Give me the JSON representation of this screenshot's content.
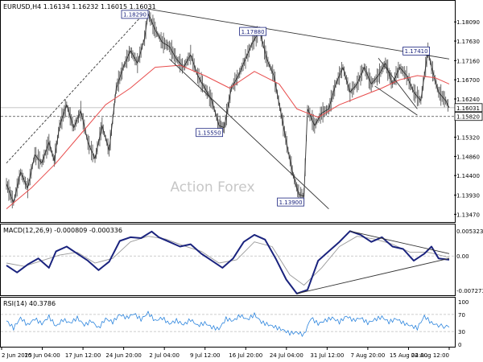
{
  "chart_data": [
    {
      "type": "line",
      "panel": "price",
      "title": "EURUSD,H4  1.16134 1.16232 1.16015 1.16031",
      "ylim": [
        1.134,
        1.185
      ],
      "y_ticks": [
        1.1809,
        1.1763,
        1.1716,
        1.167,
        1.1624,
        1.1532,
        1.1486,
        1.144,
        1.1393,
        1.1347
      ],
      "y_tick_labels": [
        "1.18090",
        "1.17630",
        "1.17160",
        "1.16700",
        "1.16240",
        "1.15320",
        "1.14860",
        "1.14400",
        "1.13930",
        "1.13470"
      ],
      "current_price": 1.16031,
      "current_price_label": "1.16031",
      "support_level": 1.1582,
      "support_label": "1.15820",
      "watermark": "Action Forex",
      "x_ticks": [
        "2 Jun 2025",
        "10 Jun 04:00",
        "17 Jun 12:00",
        "24 Jun 20:00",
        "2 Jul 04:00",
        "9 Jul 12:00",
        "16 Jul 20:00",
        "24 Jul 04:00",
        "31 Jul 12:00",
        "7 Aug 20:00",
        "15 Aug 04:00",
        "22 Aug 12:00"
      ],
      "series": [
        {
          "kind": "price",
          "color": "#555555",
          "points": [
            [
              0,
              1.142
            ],
            [
              4,
              1.1375
            ],
            [
              8,
              1.1448
            ],
            [
              12,
              1.141
            ],
            [
              16,
              1.149
            ],
            [
              20,
              1.147
            ],
            [
              24,
              1.152
            ],
            [
              27,
              1.1475
            ],
            [
              30,
              1.156
            ],
            [
              34,
              1.161
            ],
            [
              38,
              1.1555
            ],
            [
              42,
              1.1595
            ],
            [
              46,
              1.152
            ],
            [
              50,
              1.148
            ],
            [
              54,
              1.156
            ],
            [
              58,
              1.15
            ],
            [
              62,
              1.165
            ],
            [
              66,
              1.17
            ],
            [
              70,
              1.174
            ],
            [
              74,
              1.171
            ],
            [
              78,
              1.177
            ],
            [
              80,
              1.1829
            ],
            [
              84,
              1.179
            ],
            [
              88,
              1.176
            ],
            [
              92,
              1.175
            ],
            [
              96,
              1.172
            ],
            [
              100,
              1.17
            ],
            [
              104,
              1.173
            ],
            [
              108,
              1.168
            ],
            [
              112,
              1.165
            ],
            [
              116,
              1.162
            ],
            [
              120,
              1.156
            ],
            [
              123,
              1.1555
            ],
            [
              127,
              1.165
            ],
            [
              131,
              1.168
            ],
            [
              135,
              1.172
            ],
            [
              139,
              1.176
            ],
            [
              143,
              1.1788
            ],
            [
              147,
              1.172
            ],
            [
              151,
              1.168
            ],
            [
              155,
              1.159
            ],
            [
              159,
              1.15
            ],
            [
              162,
              1.144
            ],
            [
              165,
              1.1395
            ],
            [
              168,
              1.139
            ],
            [
              170,
              1.16
            ],
            [
              174,
              1.156
            ],
            [
              178,
              1.159
            ],
            [
              182,
              1.16
            ],
            [
              186,
              1.166
            ],
            [
              190,
              1.17
            ],
            [
              194,
              1.164
            ],
            [
              198,
              1.166
            ],
            [
              202,
              1.17
            ],
            [
              206,
              1.166
            ],
            [
              210,
              1.168
            ],
            [
              214,
              1.171
            ],
            [
              218,
              1.166
            ],
            [
              222,
              1.17
            ],
            [
              226,
              1.168
            ],
            [
              230,
              1.164
            ],
            [
              234,
              1.162
            ],
            [
              238,
              1.1741
            ],
            [
              240,
              1.17
            ],
            [
              244,
              1.164
            ],
            [
              248,
              1.162
            ],
            [
              250,
              1.1603
            ]
          ]
        },
        {
          "kind": "moving-average",
          "color": "#e84c4c",
          "points": [
            [
              0,
              1.136
            ],
            [
              14,
              1.141
            ],
            [
              28,
              1.147
            ],
            [
              42,
              1.154
            ],
            [
              56,
              1.161
            ],
            [
              70,
              1.165
            ],
            [
              84,
              1.17
            ],
            [
              98,
              1.1705
            ],
            [
              112,
              1.168
            ],
            [
              126,
              1.165
            ],
            [
              140,
              1.169
            ],
            [
              154,
              1.166
            ],
            [
              164,
              1.16
            ],
            [
              176,
              1.158
            ],
            [
              188,
              1.161
            ],
            [
              200,
              1.163
            ],
            [
              212,
              1.165
            ],
            [
              222,
              1.167
            ],
            [
              232,
              1.168
            ],
            [
              242,
              1.1675
            ],
            [
              250,
              1.166
            ]
          ]
        }
      ],
      "annotations": [
        {
          "label": "1.18290",
          "x": 80,
          "y": 1.1829
        },
        {
          "label": "1.17880",
          "x": 143,
          "y": 1.1788
        },
        {
          "label": "1.15550",
          "x": 123,
          "y": 1.1555
        },
        {
          "label": "1.13900",
          "x": 168,
          "y": 1.139
        },
        {
          "label": "1.17410",
          "x": 238,
          "y": 1.1741
        }
      ],
      "trendlines": [
        {
          "style": "solid",
          "from": [
            80,
            1.184
          ],
          "to": [
            250,
            1.172
          ]
        },
        {
          "style": "solid",
          "from": [
            92,
            1.172
          ],
          "to": [
            182,
            1.136
          ]
        },
        {
          "style": "dashed",
          "from": [
            0,
            1.147
          ],
          "to": [
            80,
            1.184
          ]
        },
        {
          "style": "solid",
          "from": [
            210,
            1.1722
          ],
          "to": [
            232,
            1.16
          ]
        },
        {
          "style": "solid",
          "from": [
            208,
            1.1655
          ],
          "to": [
            232,
            1.1585
          ]
        }
      ]
    },
    {
      "type": "line",
      "panel": "macd",
      "title": "MACD(12,26,9) -0.000809 -0.000336",
      "ylim": [
        -0.008,
        0.0062
      ],
      "y_ticks": [
        0.005323,
        0.0,
        -0.007273
      ],
      "y_tick_labels": [
        "0.005323",
        "0.00",
        "-0.007273"
      ],
      "zero_label": "0.00",
      "series": [
        {
          "kind": "macd",
          "color": "#1a237e",
          "points": [
            [
              0,
              -0.002
            ],
            [
              6,
              -0.0035
            ],
            [
              12,
              -0.0018
            ],
            [
              18,
              -0.0005
            ],
            [
              24,
              -0.0025
            ],
            [
              28,
              0.001
            ],
            [
              34,
              0.002
            ],
            [
              40,
              0.0005
            ],
            [
              46,
              -0.001
            ],
            [
              52,
              -0.003
            ],
            [
              58,
              -0.0012
            ],
            [
              64,
              0.0032
            ],
            [
              70,
              0.004
            ],
            [
              76,
              0.0038
            ],
            [
              82,
              0.0052
            ],
            [
              86,
              0.004
            ],
            [
              92,
              0.003
            ],
            [
              98,
              0.002
            ],
            [
              104,
              0.0025
            ],
            [
              110,
              0.0005
            ],
            [
              116,
              -0.001
            ],
            [
              122,
              -0.0025
            ],
            [
              128,
              -0.0005
            ],
            [
              134,
              0.003
            ],
            [
              140,
              0.0045
            ],
            [
              146,
              0.0035
            ],
            [
              152,
              -0.0005
            ],
            [
              158,
              -0.005
            ],
            [
              164,
              -0.008
            ],
            [
              170,
              -0.0072
            ],
            [
              176,
              -0.001
            ],
            [
              182,
              0.001
            ],
            [
              188,
              0.003
            ],
            [
              194,
              0.0053
            ],
            [
              200,
              0.0045
            ],
            [
              206,
              0.003
            ],
            [
              212,
              0.004
            ],
            [
              218,
              0.002
            ],
            [
              224,
              0.0015
            ],
            [
              230,
              -0.001
            ],
            [
              236,
              0.0005
            ],
            [
              240,
              0.002
            ],
            [
              244,
              -0.0005
            ],
            [
              250,
              -0.0008
            ]
          ]
        },
        {
          "kind": "signal",
          "color": "#999999",
          "points": [
            [
              0,
              -0.0015
            ],
            [
              10,
              -0.0022
            ],
            [
              20,
              -0.001
            ],
            [
              30,
              0.0002
            ],
            [
              40,
              0.0008
            ],
            [
              50,
              -0.0015
            ],
            [
              60,
              -0.0005
            ],
            [
              70,
              0.003
            ],
            [
              80,
              0.0042
            ],
            [
              90,
              0.0036
            ],
            [
              100,
              0.0022
            ],
            [
              110,
              0.001
            ],
            [
              120,
              -0.0015
            ],
            [
              130,
              -0.0008
            ],
            [
              140,
              0.003
            ],
            [
              150,
              0.002
            ],
            [
              160,
              -0.004
            ],
            [
              168,
              -0.0062
            ],
            [
              178,
              -0.0025
            ],
            [
              188,
              0.002
            ],
            [
              198,
              0.0042
            ],
            [
              208,
              0.0036
            ],
            [
              218,
              0.0025
            ],
            [
              228,
              0.0008
            ],
            [
              238,
              0.0008
            ],
            [
              250,
              -0.0003
            ]
          ]
        }
      ],
      "trendlines": [
        {
          "style": "solid",
          "from": [
            194,
            0.0053
          ],
          "to": [
            250,
            0.0005
          ]
        },
        {
          "style": "solid",
          "from": [
            164,
            -0.008
          ],
          "to": [
            250,
            -0.0005
          ]
        }
      ]
    },
    {
      "type": "line",
      "panel": "rsi",
      "title": "RSI(14) 40.3786",
      "ylim": [
        0,
        100
      ],
      "y_ticks": [
        100,
        70,
        30,
        0
      ],
      "y_tick_labels": [
        "100",
        "70",
        "30",
        "0"
      ],
      "series": [
        {
          "kind": "rsi",
          "color": "#2e86de",
          "points": [
            [
              0,
              55
            ],
            [
              4,
              38
            ],
            [
              8,
              62
            ],
            [
              12,
              45
            ],
            [
              16,
              60
            ],
            [
              20,
              48
            ],
            [
              24,
              65
            ],
            [
              28,
              42
            ],
            [
              32,
              58
            ],
            [
              36,
              50
            ],
            [
              40,
              62
            ],
            [
              44,
              45
            ],
            [
              48,
              55
            ],
            [
              52,
              38
            ],
            [
              56,
              60
            ],
            [
              60,
              52
            ],
            [
              64,
              70
            ],
            [
              68,
              62
            ],
            [
              72,
              72
            ],
            [
              76,
              58
            ],
            [
              80,
              74
            ],
            [
              84,
              55
            ],
            [
              88,
              62
            ],
            [
              92,
              48
            ],
            [
              96,
              56
            ],
            [
              100,
              46
            ],
            [
              104,
              58
            ],
            [
              108,
              44
            ],
            [
              112,
              50
            ],
            [
              116,
              40
            ],
            [
              120,
              36
            ],
            [
              124,
              60
            ],
            [
              128,
              55
            ],
            [
              132,
              68
            ],
            [
              136,
              58
            ],
            [
              140,
              70
            ],
            [
              144,
              52
            ],
            [
              148,
              46
            ],
            [
              152,
              40
            ],
            [
              156,
              34
            ],
            [
              160,
              26
            ],
            [
              164,
              28
            ],
            [
              168,
              22
            ],
            [
              172,
              62
            ],
            [
              176,
              48
            ],
            [
              180,
              56
            ],
            [
              184,
              62
            ],
            [
              188,
              52
            ],
            [
              192,
              66
            ],
            [
              196,
              56
            ],
            [
              200,
              62
            ],
            [
              204,
              50
            ],
            [
              208,
              58
            ],
            [
              212,
              64
            ],
            [
              216,
              52
            ],
            [
              220,
              60
            ],
            [
              224,
              50
            ],
            [
              228,
              44
            ],
            [
              232,
              38
            ],
            [
              236,
              66
            ],
            [
              240,
              50
            ],
            [
              244,
              44
            ],
            [
              250,
              40
            ]
          ]
        }
      ]
    }
  ]
}
